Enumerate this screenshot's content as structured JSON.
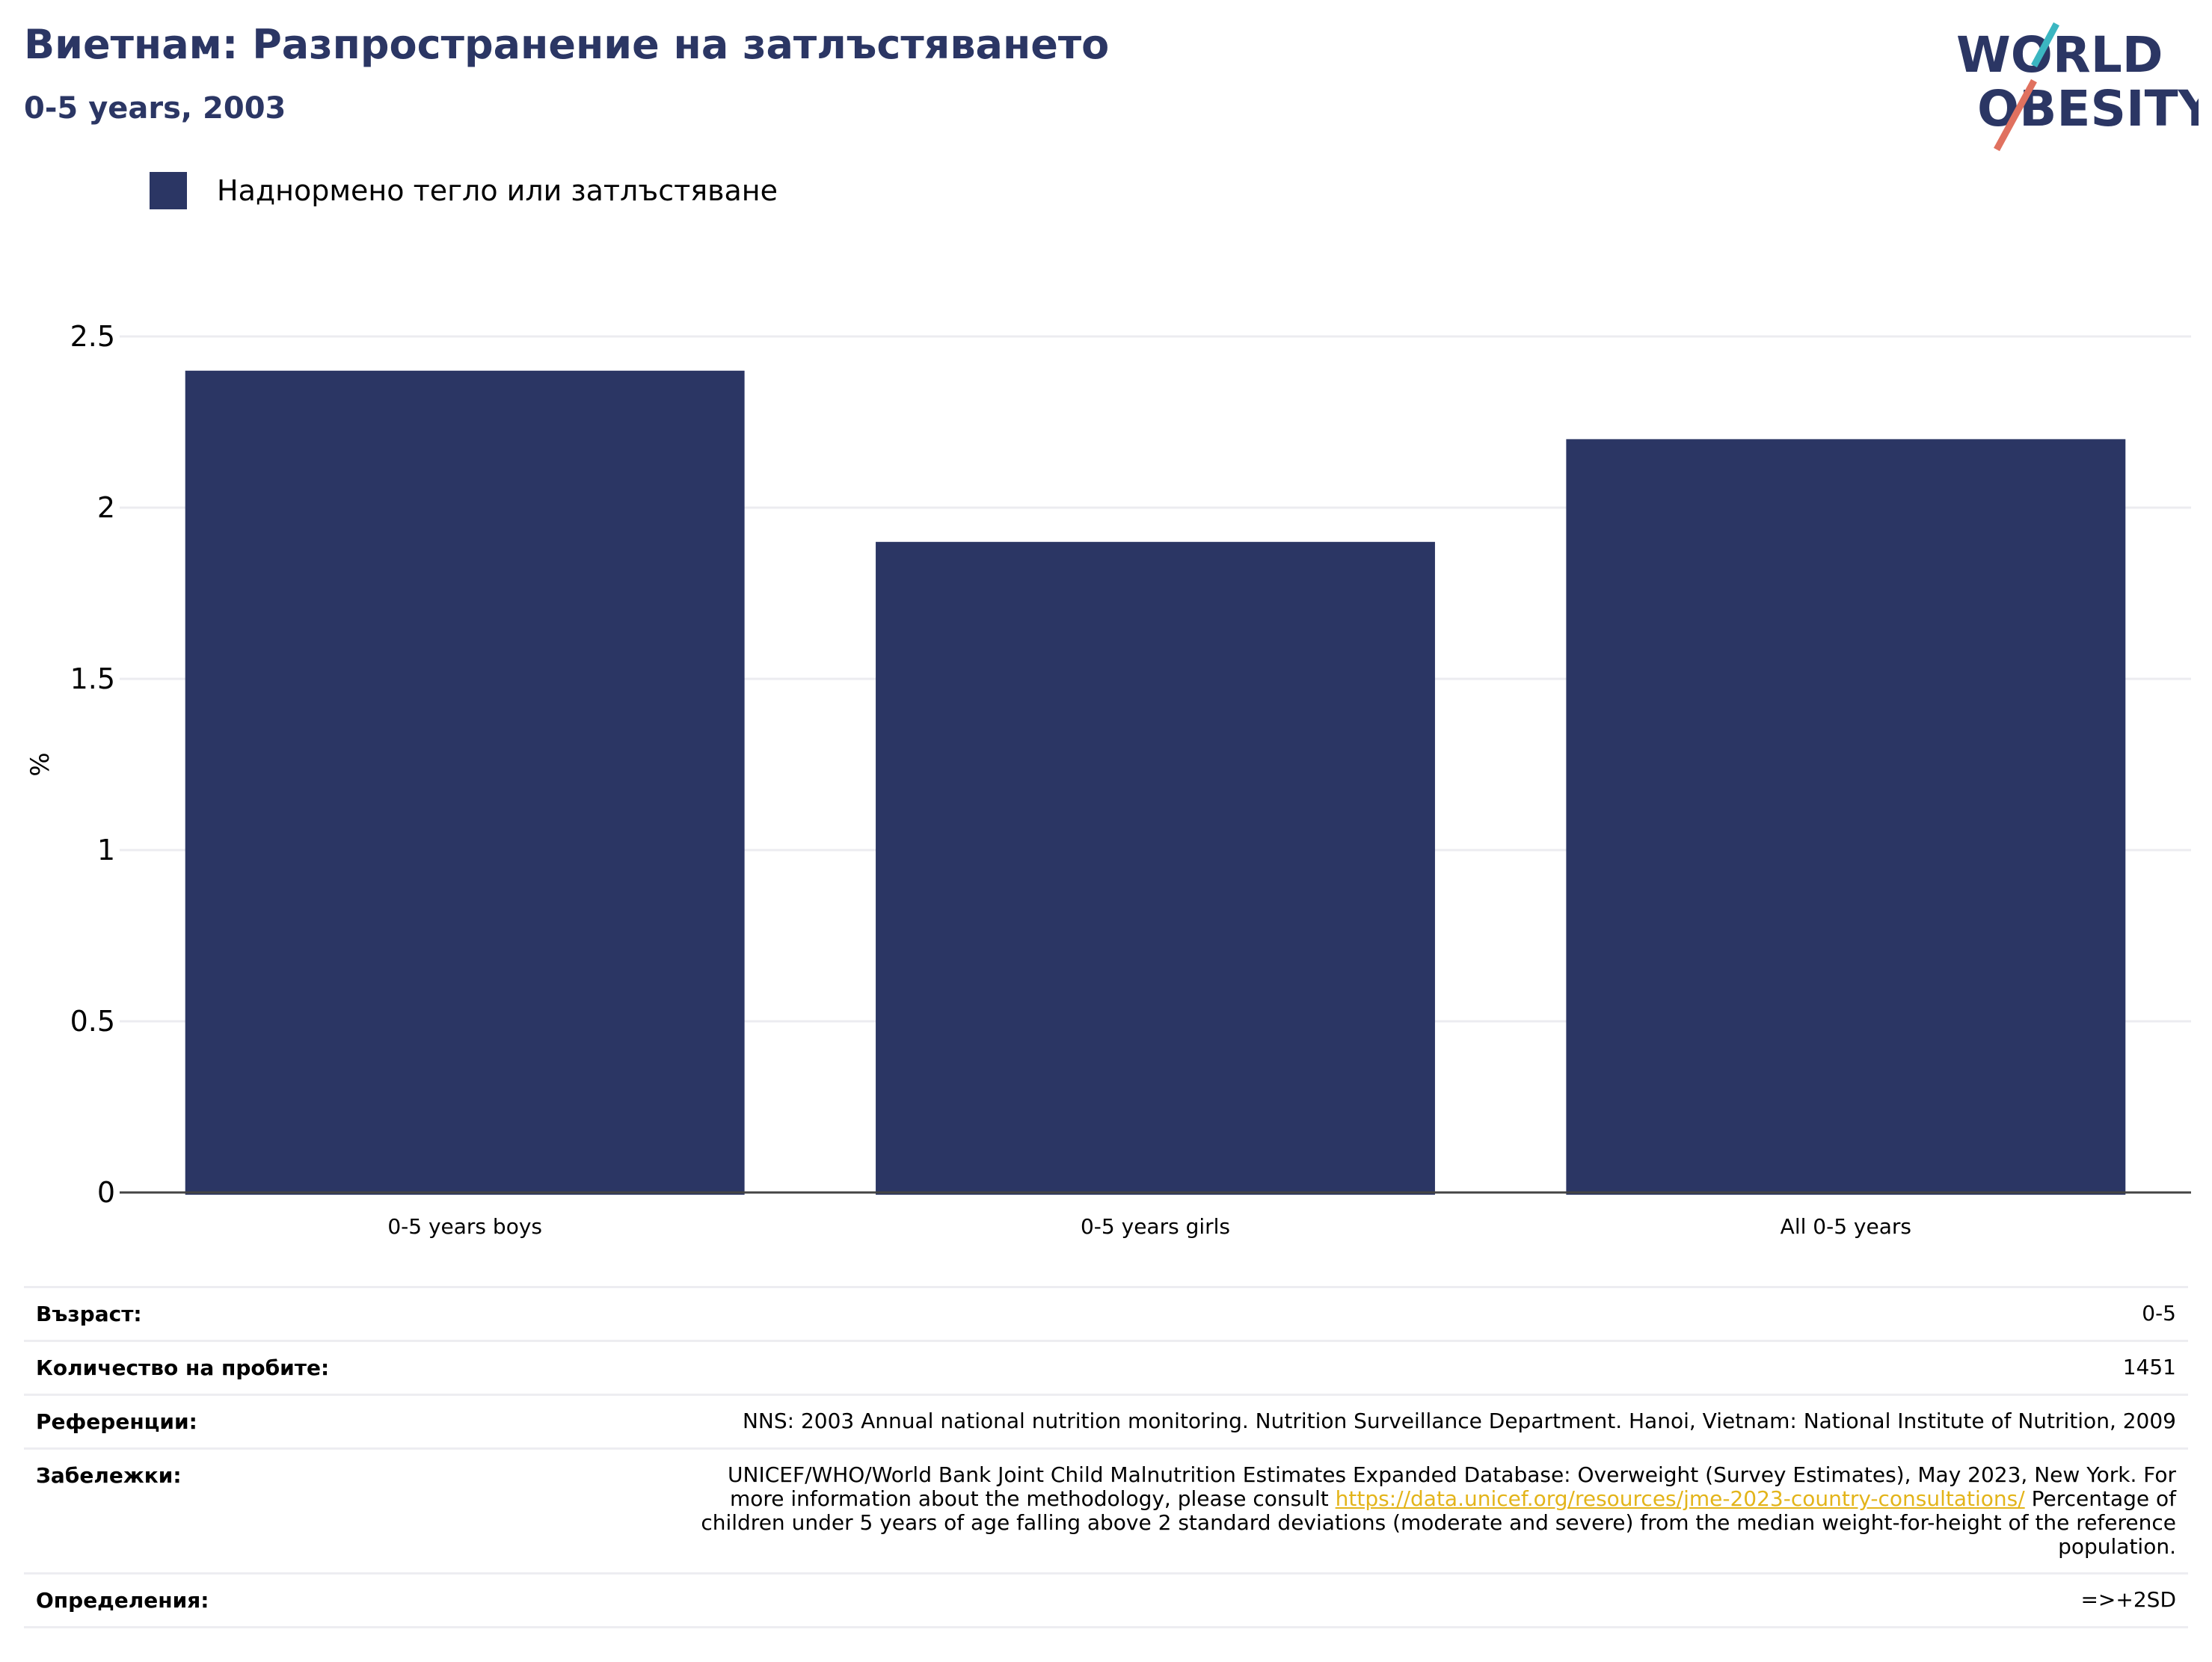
{
  "header": {
    "title": "Виетнам: Разпространение на затлъстяването",
    "subtitle": "0-5 years, 2003"
  },
  "logo": {
    "line1": "WORLD",
    "line2": "OBESITY",
    "stroke_colors": [
      "#3bb6c1",
      "#e0715f"
    ]
  },
  "legend": {
    "label": "Наднормено тегло или затлъстяване",
    "color": "#2b3664"
  },
  "chart_data": {
    "type": "bar",
    "categories": [
      "0-5 years boys",
      "0-5 years girls",
      "All 0-5 years"
    ],
    "series": [
      {
        "name": "Наднормено тегло или затлъстяване",
        "values": [
          2.4,
          1.9,
          2.2
        ]
      }
    ],
    "ylabel": "%",
    "ylim": [
      0,
      2.5
    ],
    "yticks": [
      0,
      0.5,
      1,
      1.5,
      2,
      2.5
    ],
    "ytick_labels": [
      "0",
      "0.5",
      "1",
      "1.5",
      "2",
      "2.5"
    ],
    "grid": true,
    "bar_color": "#2b3664"
  },
  "info": {
    "age_label": "Възраст:",
    "age_value": "0-5",
    "sample_label": "Количество на пробите:",
    "sample_value": "1451",
    "refs_label": "Референции:",
    "refs_value": "NNS: 2003 Annual national nutrition monitoring. Nutrition Surveillance Department. Hanoi, Vietnam: National Institute of Nutrition, 2009",
    "notes_label": "Забележки:",
    "notes_line1": "UNICEF/WHO/World Bank Joint Child Malnutrition Estimates Expanded Database: Overweight (Survey Estimates), May 2023, New York. For",
    "notes_line2_pre": "more information about the methodology, please consult ",
    "notes_link": "https://data.unicef.org/resources/jme-2023-country-consultations/",
    "notes_line2_post": " Percentage of",
    "notes_line3": "children under 5 years of age falling above 2 standard deviations (moderate and severe) from the median weight-for-height of the reference",
    "notes_line4": "population.",
    "defs_label": "Определения:",
    "defs_value": "=>+2SD"
  }
}
